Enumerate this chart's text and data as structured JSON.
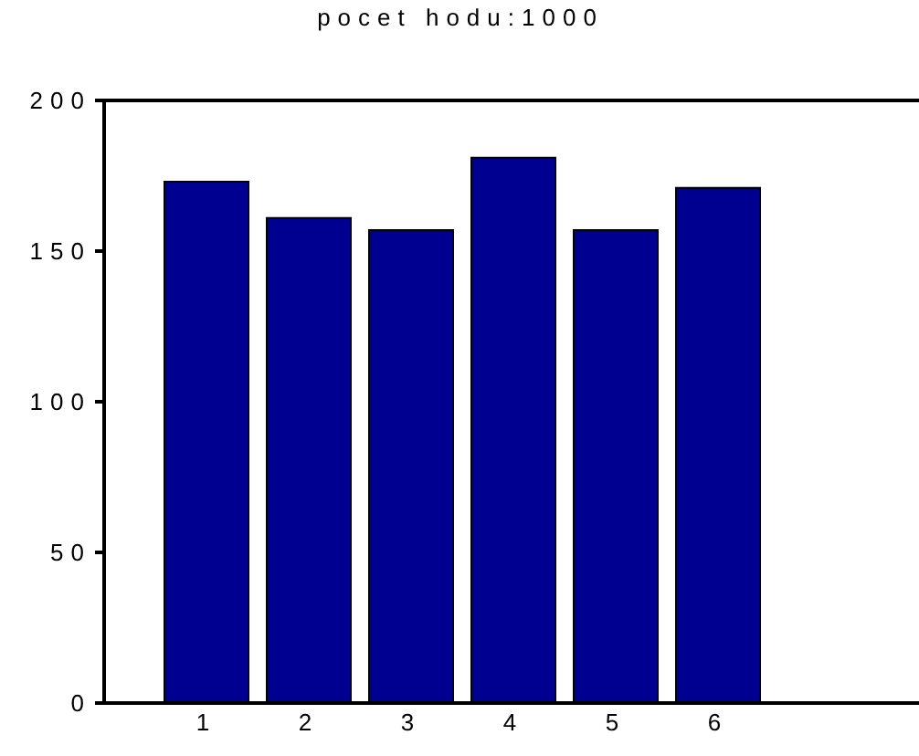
{
  "chart_data": {
    "type": "bar",
    "title": "pocet hodu:1000",
    "x": [
      1,
      2,
      3,
      4,
      5,
      6
    ],
    "values": [
      173,
      161,
      157,
      181,
      157,
      171
    ],
    "color": "#000090",
    "xlim": [
      0,
      8
    ],
    "xticks": [
      1,
      2,
      3,
      4,
      5,
      6
    ],
    "ylim": [
      0,
      200
    ],
    "yticks": [
      0,
      50,
      100,
      150,
      200
    ]
  }
}
